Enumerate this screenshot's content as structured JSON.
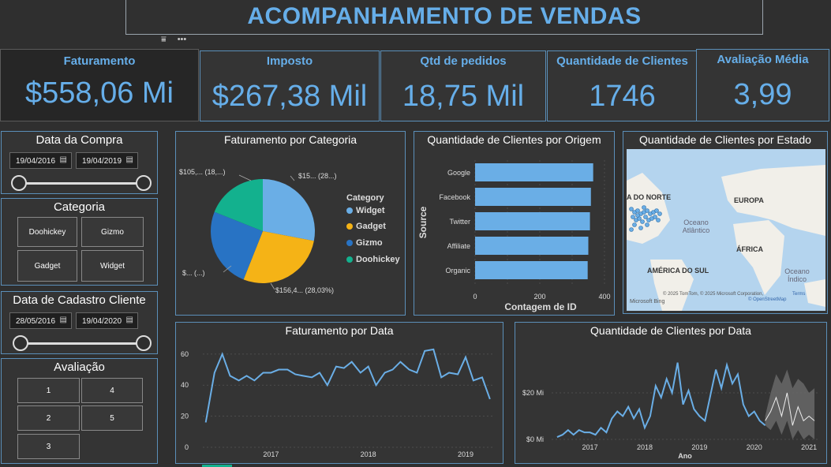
{
  "header": {
    "title": "ACOMPANHAMENTO DE VENDAS"
  },
  "kpis": [
    {
      "label": "Faturamento",
      "value": "$558,06 Mi"
    },
    {
      "label": "Imposto",
      "value": "$267,38 Mil"
    },
    {
      "label": "Qtd de pedidos",
      "value": "18,75 Mil"
    },
    {
      "label": "Quantidade de Clientes",
      "value": "1746"
    },
    {
      "label": "Avaliação Média",
      "value": "3,99"
    }
  ],
  "filters": {
    "data_compra": {
      "title": "Data da Compra",
      "start": "19/04/2016",
      "end": "19/04/2019"
    },
    "categoria": {
      "title": "Categoria",
      "options": [
        "Doohickey",
        "Gizmo",
        "Gadget",
        "Widget"
      ]
    },
    "data_cadastro": {
      "title": "Data de Cadastro Cliente",
      "start": "28/05/2016",
      "end": "19/04/2020"
    },
    "avaliacao": {
      "title": "Avaliação",
      "options": [
        "1",
        "4",
        "2",
        "5",
        "3"
      ]
    }
  },
  "colors": {
    "accent": "#66aee9",
    "widget": "#6aaee6",
    "gadget": "#f5b316",
    "gizmo": "#2873c4",
    "doohickey": "#13b18e"
  },
  "pie": {
    "title": "Faturamento por Categoria",
    "legend_title": "Category",
    "labels": [
      "$15... (28...)",
      "$156,4... (28,03%)",
      "$... (...)",
      "$105,... (18,...)"
    ]
  },
  "map": {
    "title": "Quantidade de Clientes por Estado",
    "labels": [
      "A DO NORTE",
      "EUROPA",
      "Oceano Atlântico",
      "ÁFRICA",
      "AMÉRICA DO SUL",
      "Oceano Índico"
    ],
    "attribution": "© 2025 TomTom, © 2025 Microsoft Corporation,",
    "attribution2": "© OpenStreetMap",
    "terms": "Terms",
    "logo": "Microsoft Bing"
  },
  "chart_data": [
    {
      "type": "pie",
      "title": "Faturamento por Categoria",
      "legend_title": "Category",
      "categories": [
        "Widget",
        "Gadget",
        "Gizmo",
        "Doohickey"
      ],
      "values": [
        28.0,
        28.03,
        25.0,
        18.97
      ],
      "legend": "right"
    },
    {
      "type": "bar",
      "title": "Quantidade de Clientes por Origem",
      "xlabel": "Contagem de ID",
      "ylabel": "Source",
      "categories": [
        "Google",
        "Facebook",
        "Twitter",
        "Affiliate",
        "Organic"
      ],
      "values": [
        365,
        358,
        355,
        350,
        348
      ],
      "xlim": [
        0,
        400
      ],
      "ticks": [
        "0",
        "200",
        "400"
      ]
    },
    {
      "type": "line",
      "title": "Faturamento por Data",
      "ylim": [
        0,
        65
      ],
      "y_ticks": [
        "0",
        "20",
        "40",
        "60"
      ],
      "x_ticks": [
        "2017",
        "2018",
        "2019"
      ],
      "x_range": [
        2016.3,
        2019.3
      ],
      "x": [
        2016.33,
        2016.42,
        2016.5,
        2016.58,
        2016.67,
        2016.75,
        2016.83,
        2016.92,
        2017.0,
        2017.08,
        2017.17,
        2017.25,
        2017.33,
        2017.42,
        2017.5,
        2017.58,
        2017.67,
        2017.75,
        2017.83,
        2017.92,
        2018.0,
        2018.08,
        2018.17,
        2018.25,
        2018.33,
        2018.42,
        2018.5,
        2018.58,
        2018.67,
        2018.75,
        2018.83,
        2018.92,
        2019.0,
        2019.08,
        2019.17,
        2019.25
      ],
      "values": [
        16,
        48,
        60,
        46,
        43,
        46,
        43,
        48,
        48,
        50,
        50,
        47,
        46,
        45,
        48,
        40,
        52,
        51,
        55,
        48,
        52,
        40,
        48,
        50,
        55,
        50,
        48,
        62,
        63,
        45,
        48,
        47,
        58,
        43,
        45,
        31
      ]
    },
    {
      "type": "line",
      "title": "Quantidade de Clientes por Data",
      "xlabel": "Ano",
      "y_ticks": [
        "$0 Mi",
        "$20 Mi"
      ],
      "x_ticks": [
        "2017",
        "2018",
        "2019",
        "2020",
        "2021"
      ],
      "x_range": [
        2016.3,
        2021.2
      ],
      "ylim": [
        0,
        40
      ],
      "x": [
        2016.4,
        2016.5,
        2016.6,
        2016.7,
        2016.8,
        2016.9,
        2017.0,
        2017.1,
        2017.2,
        2017.3,
        2017.4,
        2017.5,
        2017.6,
        2017.7,
        2017.8,
        2017.9,
        2018.0,
        2018.1,
        2018.2,
        2018.3,
        2018.4,
        2018.5,
        2018.6,
        2018.7,
        2018.8,
        2018.9,
        2019.0,
        2019.1,
        2019.2,
        2019.3,
        2019.4,
        2019.5,
        2019.6,
        2019.7,
        2019.8,
        2019.9,
        2020.0,
        2020.1,
        2020.2
      ],
      "values": [
        1,
        2,
        4,
        2,
        4,
        3,
        3,
        2,
        5,
        3,
        9,
        12,
        10,
        14,
        9,
        13,
        5,
        10,
        23,
        18,
        26,
        20,
        33,
        15,
        21,
        13,
        10,
        8,
        19,
        30,
        22,
        32,
        24,
        28,
        15,
        10,
        12,
        8,
        6
      ],
      "forecast": {
        "x": [
          2020.2,
          2020.3,
          2020.4,
          2020.5,
          2020.6,
          2020.7,
          2020.8,
          2020.9,
          2021.0,
          2021.1
        ],
        "values": [
          8,
          12,
          18,
          10,
          20,
          6,
          14,
          8,
          10,
          8
        ],
        "upper": [
          10,
          20,
          28,
          24,
          30,
          22,
          26,
          24,
          20,
          22
        ],
        "lower": [
          6,
          4,
          8,
          2,
          8,
          0,
          4,
          0,
          2,
          0
        ]
      }
    }
  ]
}
